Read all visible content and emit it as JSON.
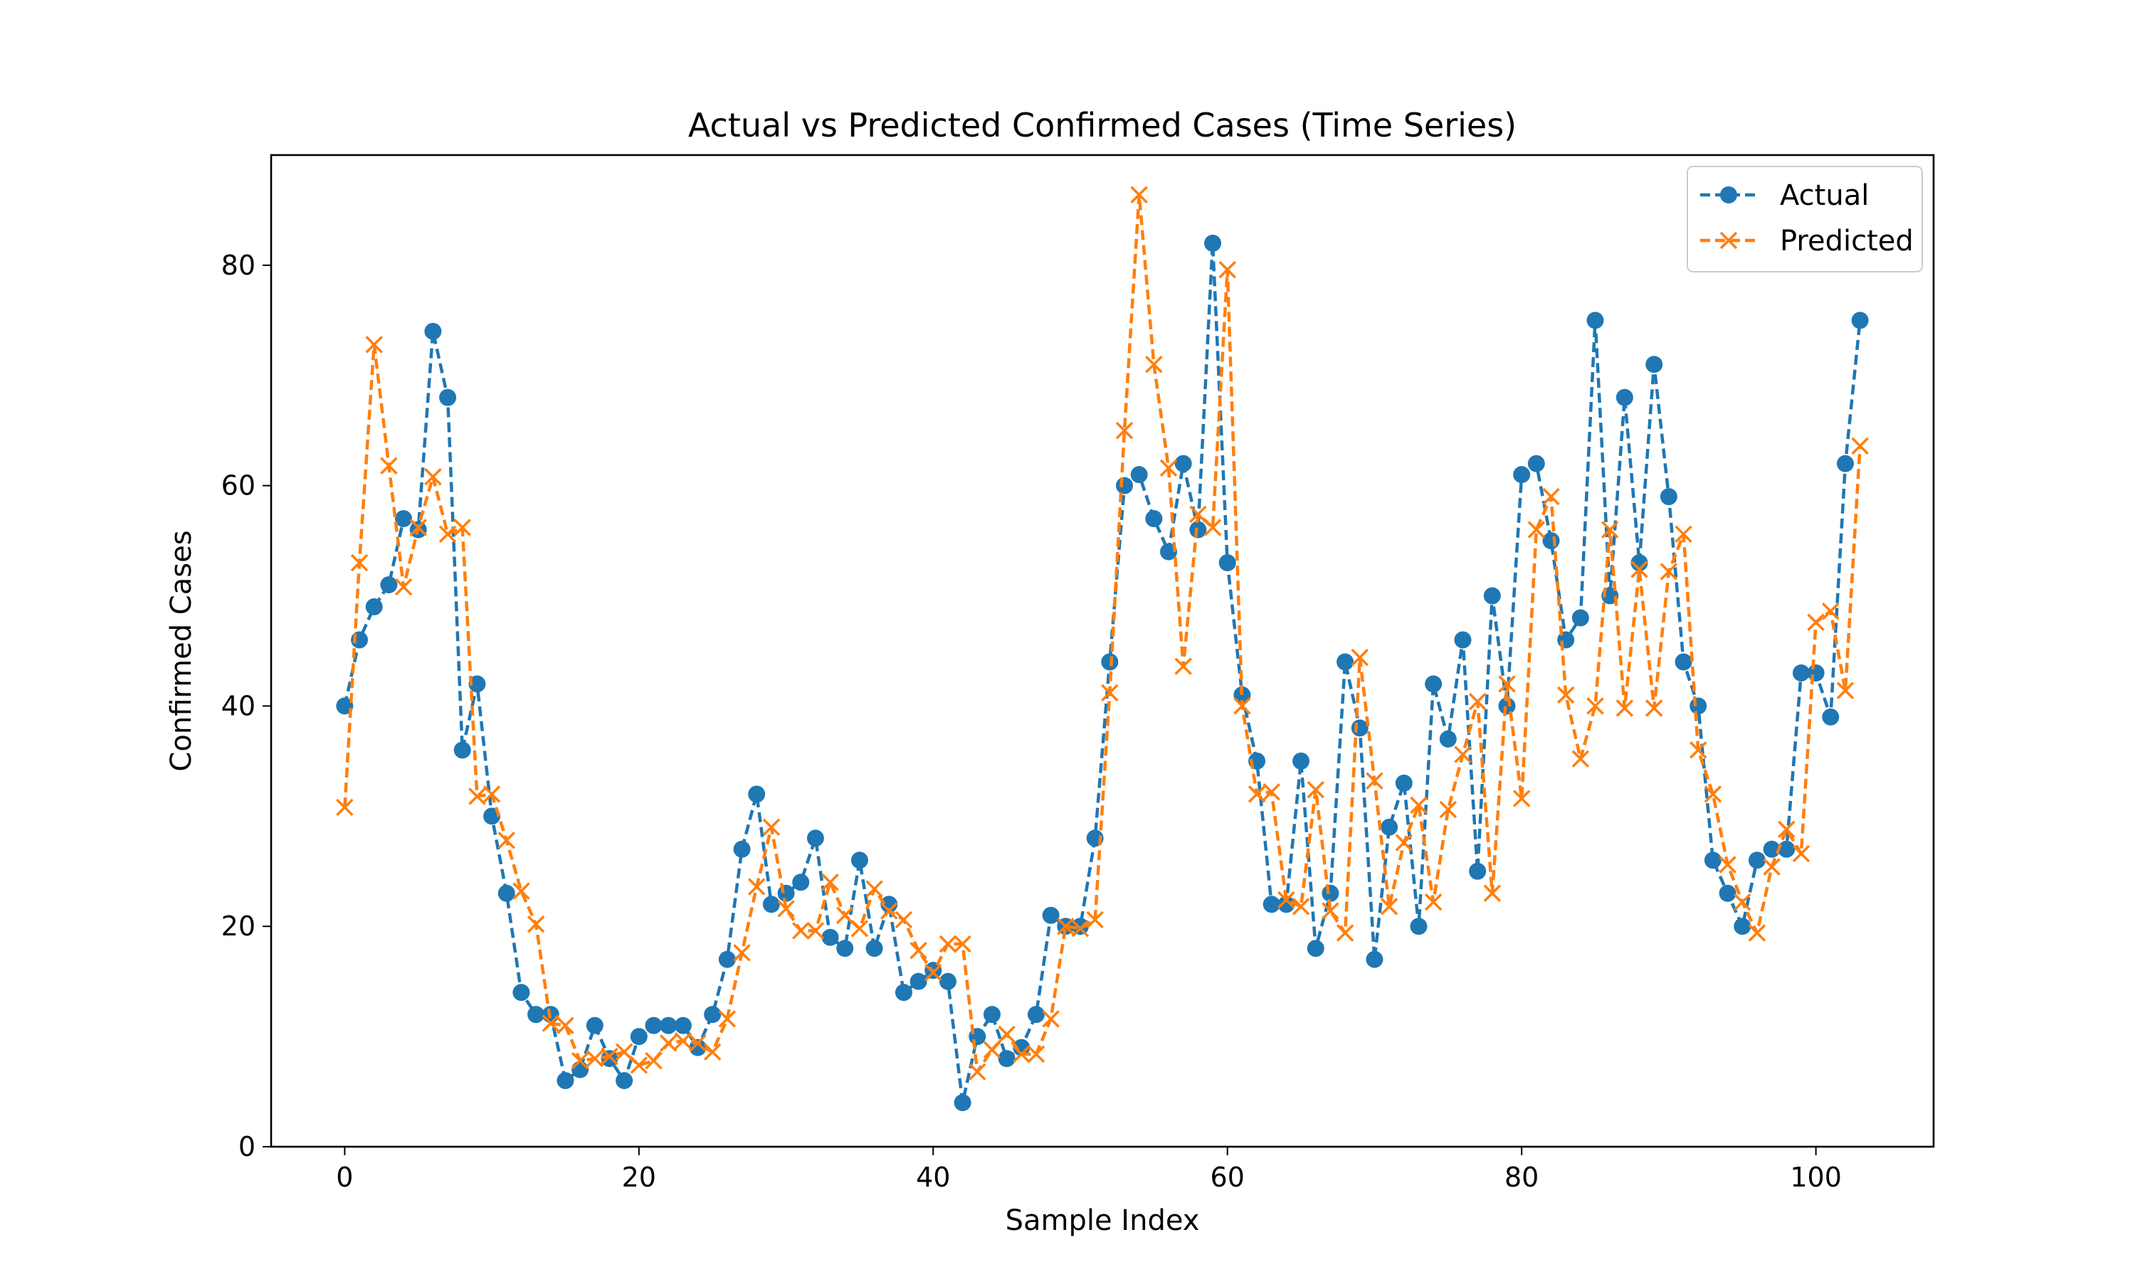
{
  "chart_data": {
    "type": "line",
    "title": "Actual vs Predicted Confirmed Cases (Time Series)",
    "xlabel": "Sample Index",
    "ylabel": "Confirmed Cases",
    "xlim": [
      -5,
      108
    ],
    "ylim": [
      0,
      90
    ],
    "x_ticks": [
      0,
      20,
      40,
      60,
      80,
      100
    ],
    "y_ticks": [
      0,
      20,
      40,
      60,
      80
    ],
    "grid": false,
    "legend_position": "top-right",
    "series": [
      {
        "name": "Actual",
        "color": "#1f77b4",
        "marker": "circle",
        "line_style": "dashed",
        "values": [
          40,
          46,
          49,
          51,
          57,
          56,
          74,
          68,
          36,
          42,
          30,
          23,
          14,
          12,
          12,
          6,
          7,
          11,
          8,
          6,
          10,
          11,
          11,
          11,
          9,
          12,
          17,
          27,
          32,
          22,
          23,
          24,
          28,
          19,
          18,
          26,
          18,
          22,
          14,
          15,
          16,
          15,
          4,
          10,
          12,
          8,
          9,
          12,
          21,
          20,
          20,
          28,
          44,
          60,
          61,
          57,
          54,
          62,
          56,
          82,
          53,
          41,
          35,
          22,
          22,
          35,
          18,
          23,
          44,
          38,
          17,
          29,
          33,
          20,
          42,
          37,
          46,
          25,
          50,
          40,
          61,
          62,
          55,
          46,
          48,
          75,
          50,
          68,
          53,
          71,
          59,
          44,
          40,
          26,
          23,
          20,
          26,
          27,
          27,
          43,
          43,
          39,
          62,
          75
        ]
      },
      {
        "name": "Predicted",
        "color": "#ff7f0e",
        "marker": "x",
        "line_style": "dashed",
        "values": [
          30.8,
          53,
          72.8,
          61.8,
          50.8,
          56.2,
          60.8,
          55.6,
          56.2,
          31.8,
          32,
          27.8,
          23.2,
          20.2,
          11.2,
          11,
          7.8,
          8,
          8.2,
          8.6,
          7.4,
          7.8,
          9.4,
          9.6,
          9.4,
          8.6,
          11.6,
          17.6,
          23.6,
          29,
          21.6,
          19.6,
          19.6,
          24,
          21,
          19.8,
          23.4,
          21.4,
          20.6,
          17.8,
          15.8,
          18.4,
          18.4,
          6.8,
          8.8,
          10.2,
          8.4,
          8.4,
          11.6,
          20,
          19.8,
          20.6,
          41.2,
          65,
          86.4,
          71,
          61.6,
          43.6,
          57.4,
          56.2,
          79.6,
          40,
          32,
          32.2,
          22.4,
          21.8,
          32.4,
          21.4,
          19.4,
          44.4,
          33.2,
          21.8,
          27.6,
          31,
          22.2,
          30.6,
          35.6,
          40.4,
          23,
          42,
          31.6,
          56,
          59,
          41,
          35.2,
          40,
          56,
          39.8,
          52.4,
          39.8,
          52.2,
          55.6,
          36,
          32,
          25.6,
          22.2,
          19.4,
          25.4,
          28.8,
          26.6,
          47.6,
          48.6,
          41.4,
          63.6
        ]
      }
    ]
  }
}
